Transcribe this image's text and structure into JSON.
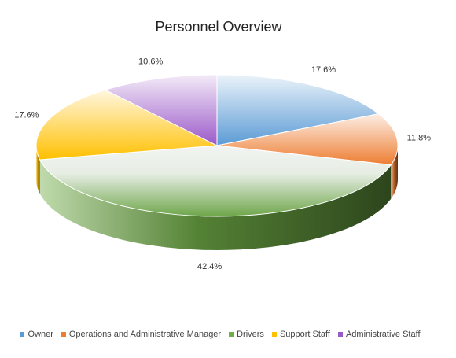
{
  "chart_data": {
    "type": "pie",
    "title": "Personnel Overview",
    "categories": [
      "Owner",
      "Operations and Administrative Manager",
      "Drivers",
      "Support Staff",
      "Administrative Staff"
    ],
    "values": [
      17.6,
      11.8,
      42.4,
      17.6,
      10.6
    ],
    "value_labels": [
      "17.6%",
      "11.8%",
      "42.4%",
      "17.6%",
      "10.6%"
    ],
    "colors": [
      "#5b9bd5",
      "#ed7d31",
      "#70ad47",
      "#ffc000",
      "#9b59c8"
    ],
    "legend_position": "bottom",
    "style": "3d-pie"
  }
}
